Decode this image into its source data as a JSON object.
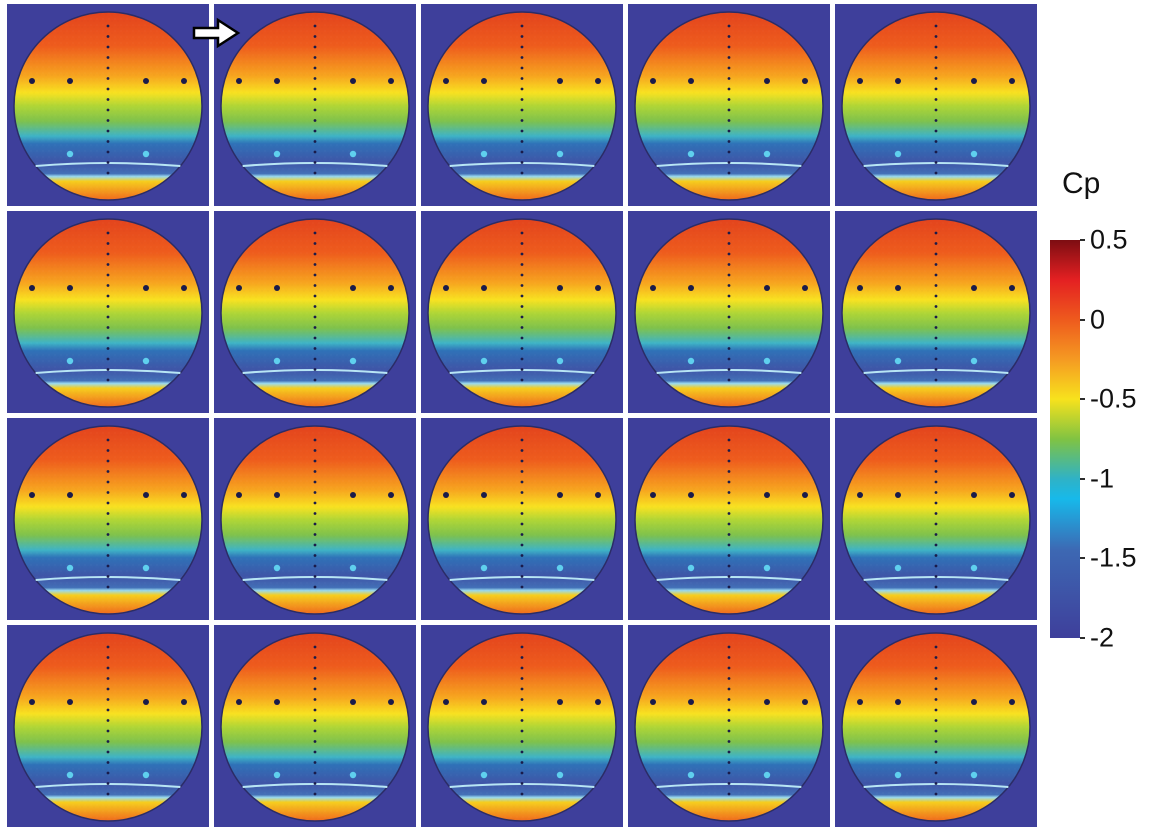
{
  "colorbar": {
    "title": "Cp",
    "range": [
      -2,
      0.5
    ],
    "ticks": [
      "0.5",
      "0",
      "-0.5",
      "-1",
      "-1.5",
      "-2"
    ],
    "tick_values": [
      0.5,
      0,
      -0.5,
      -1,
      -1.5,
      -2
    ],
    "colors": {
      "top": "#7d0d12",
      "red": "#e42022",
      "orange": "#f59a22",
      "yellow": "#f7e21d",
      "green": "#80c342",
      "cyan": "#17b9ea",
      "blue": "#3d68b3",
      "bottom": "#3e3f9b"
    }
  },
  "grid": {
    "rows": 4,
    "columns": 5,
    "marker": "right-arrow-icon",
    "marked_panel": [
      1,
      2
    ]
  },
  "colors": {
    "background": "#3e3f9b",
    "border": "#ffffff",
    "pressure_taps": "#1a1b4a"
  }
}
